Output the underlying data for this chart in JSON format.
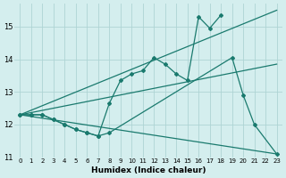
{
  "xlabel": "Humidex (Indice chaleur)",
  "bg_color": "#d4eeee",
  "grid_color": "#aed4d4",
  "line_color": "#1a7a6e",
  "xlim": [
    -0.5,
    23.5
  ],
  "ylim": [
    11.0,
    15.7
  ],
  "yticks": [
    11,
    12,
    13,
    14,
    15
  ],
  "xticks": [
    0,
    1,
    2,
    3,
    4,
    5,
    6,
    7,
    8,
    9,
    10,
    11,
    12,
    13,
    14,
    15,
    16,
    17,
    18,
    19,
    20,
    21,
    22,
    23
  ],
  "line_upper": {
    "x": [
      0,
      23
    ],
    "y": [
      12.3,
      15.5
    ]
  },
  "line_lower": {
    "x": [
      0,
      23
    ],
    "y": [
      12.3,
      11.1
    ]
  },
  "line_mid_straight": {
    "x": [
      0,
      23
    ],
    "y": [
      12.3,
      13.85
    ]
  },
  "line_zigzag_upper": {
    "x": [
      0,
      1,
      2,
      3,
      4,
      5,
      6,
      7,
      8,
      9,
      10,
      11,
      12,
      13,
      14,
      15,
      16,
      17,
      18
    ],
    "y": [
      12.3,
      12.3,
      12.3,
      12.15,
      12.0,
      11.85,
      11.75,
      11.65,
      12.65,
      13.35,
      13.55,
      13.65,
      14.05,
      13.85,
      13.55,
      13.35,
      15.3,
      14.95,
      15.35
    ]
  },
  "line_zigzag_lower": {
    "x": [
      0,
      1,
      2,
      3,
      4,
      5,
      6,
      7,
      8,
      19,
      20,
      21,
      23
    ],
    "y": [
      12.3,
      12.3,
      12.3,
      12.15,
      12.0,
      11.85,
      11.75,
      11.65,
      11.75,
      14.05,
      12.9,
      12.0,
      11.1
    ]
  }
}
